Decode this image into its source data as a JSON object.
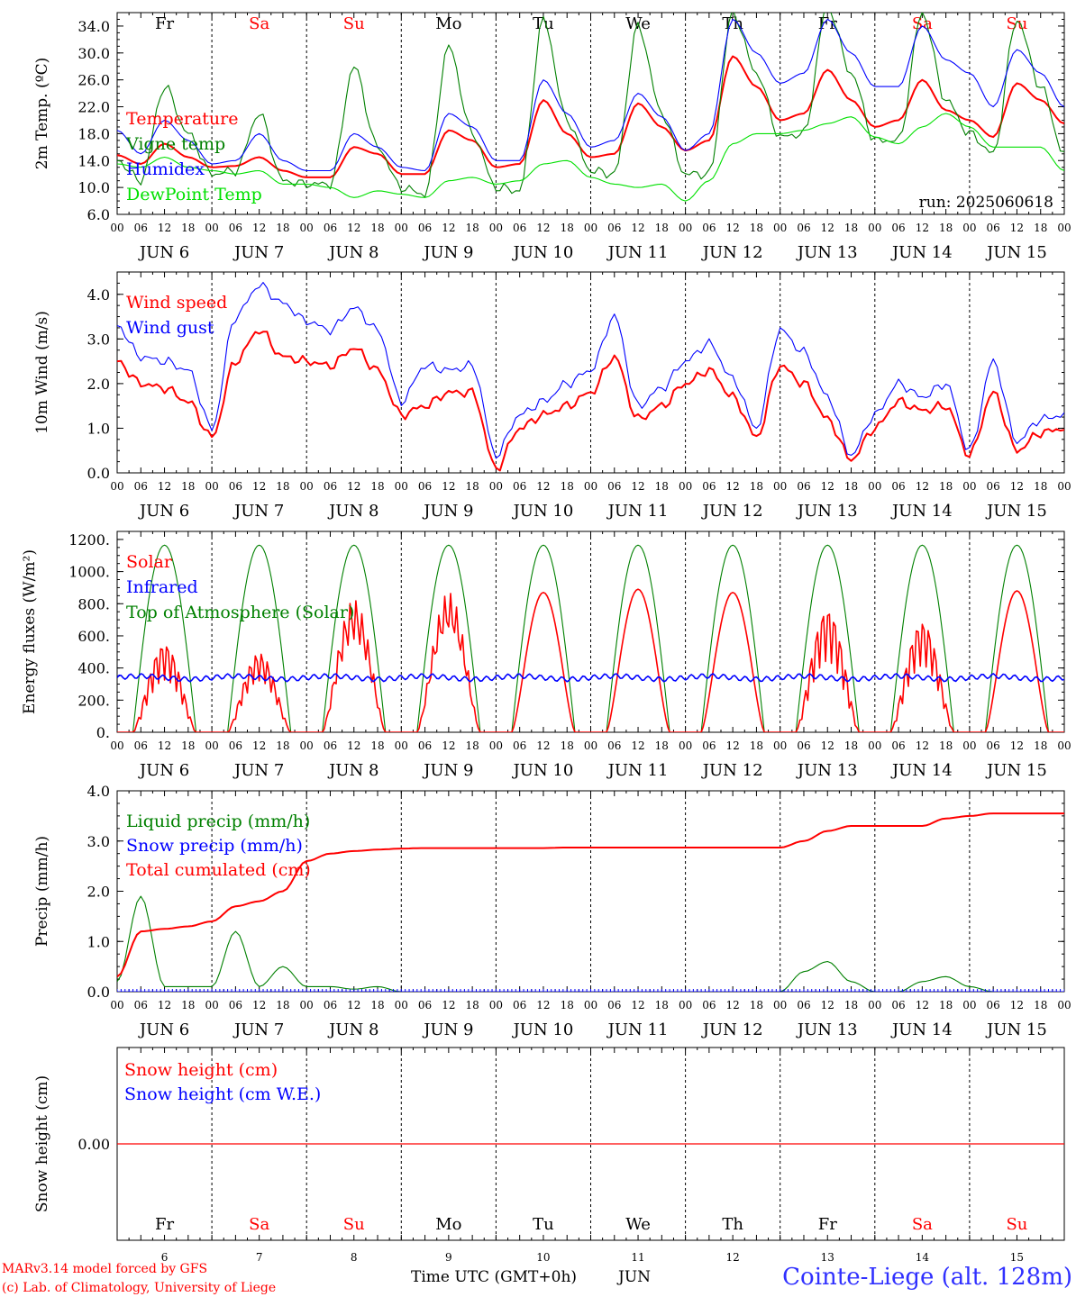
{
  "colors": {
    "red": "#ff0000",
    "green": "#008000",
    "blue": "#0000ff",
    "lime": "#00e000",
    "black": "#000000"
  },
  "days": {
    "labels": [
      "Fr",
      "Sa",
      "Su",
      "Mo",
      "Tu",
      "We",
      "Th",
      "Fr",
      "Sa",
      "Su"
    ],
    "weekend": [
      false,
      true,
      true,
      false,
      false,
      false,
      false,
      false,
      true,
      true
    ],
    "dates": [
      "JUN  6",
      "JUN  7",
      "JUN  8",
      "JUN  9",
      "JUN 10",
      "JUN 11",
      "JUN 12",
      "JUN 13",
      "JUN 14",
      "JUN 15"
    ],
    "day_numbers": [
      "6",
      "7",
      "8",
      "9",
      "10",
      "11",
      "12",
      "13",
      "14",
      "15"
    ]
  },
  "hour_ticks": [
    "00",
    "06",
    "12",
    "18"
  ],
  "final_hour": "00",
  "footer": {
    "model": "MARv3.14 model forced by GFS",
    "copyright": "(c) Lab. of Climatology, University of Liege",
    "xlabel": "Time UTC (GMT+0h)",
    "month": "JUN",
    "station": "Cointe-Liege (alt. 128m)"
  },
  "chart_data": [
    {
      "type": "line",
      "ylabel": "2m Temp. (ºC)",
      "ylim": [
        6,
        36
      ],
      "yticks": [
        "6.0",
        "10.0",
        "14.0",
        "18.0",
        "22.0",
        "26.0",
        "30.0",
        "34.0"
      ],
      "ytick_values": [
        6,
        10,
        14,
        18,
        22,
        26,
        30,
        34
      ],
      "annotation": "run: 2025060618",
      "x_hours": [
        0,
        6,
        12,
        18,
        24,
        30,
        36,
        42,
        48,
        54,
        60,
        66,
        72,
        78,
        84,
        90,
        96,
        102,
        108,
        114,
        120,
        126,
        132,
        138,
        144,
        150,
        156,
        162,
        168,
        174,
        180,
        186,
        192,
        198,
        204,
        210,
        216,
        222,
        228,
        234,
        240
      ],
      "series": [
        {
          "name": "Temperature",
          "color": "#ff0000",
          "values": [
            14.8,
            13.5,
            16.5,
            14.5,
            13,
            13.2,
            14.5,
            12.5,
            11.5,
            11.5,
            16,
            15,
            12,
            12,
            18.5,
            17,
            13,
            13.5,
            23,
            18,
            14.5,
            15,
            22.5,
            19,
            15.5,
            17,
            29.5,
            25,
            20,
            21,
            27.5,
            23,
            19,
            20,
            26,
            21.5,
            20,
            17.5,
            25.5,
            23,
            19.5
          ]
        },
        {
          "name": "Vigne temp",
          "color": "#008000",
          "values": [
            14,
            11,
            25,
            18,
            12,
            12.5,
            21,
            11,
            10.5,
            10.5,
            28,
            16,
            10,
            9,
            31,
            18,
            10,
            9.5,
            35,
            20,
            12.5,
            12,
            34,
            21,
            12,
            12,
            36,
            27,
            17.5,
            18,
            37,
            27,
            17,
            17,
            36,
            23,
            18,
            15,
            35,
            25,
            15
          ]
        },
        {
          "name": "Humidex",
          "color": "#0000ff",
          "values": [
            18.5,
            15,
            20,
            17,
            13.5,
            14,
            18,
            14,
            12.5,
            12.5,
            18,
            16,
            13,
            12.5,
            21,
            19,
            14,
            14,
            26,
            21,
            16,
            17,
            24,
            20.5,
            15.5,
            18,
            35,
            30,
            25.5,
            27,
            35,
            30,
            25,
            25,
            34,
            29,
            27,
            22,
            30.5,
            27,
            22
          ]
        },
        {
          "name": "DewPoint Temp",
          "color": "#00e000",
          "values": [
            13.5,
            13,
            14.5,
            13,
            12.5,
            12,
            12.5,
            10.5,
            10.5,
            10,
            8.5,
            9.5,
            9,
            8.5,
            11,
            11.5,
            10.5,
            11,
            13.5,
            14,
            11.5,
            10.5,
            10,
            10.5,
            8,
            11,
            16.5,
            18,
            18,
            18.5,
            19.5,
            20.5,
            17.5,
            16.5,
            19,
            21,
            19,
            16,
            16,
            16,
            12.5
          ]
        }
      ]
    },
    {
      "type": "line",
      "ylabel": "10m Wind (m/s)",
      "ylim": [
        0,
        4.5
      ],
      "yticks": [
        "0.0",
        "1.0",
        "2.0",
        "3.0",
        "4.0"
      ],
      "ytick_values": [
        0,
        1,
        2,
        3,
        4
      ],
      "x_hours": [
        0,
        6,
        12,
        18,
        24,
        30,
        36,
        42,
        48,
        54,
        60,
        66,
        72,
        78,
        84,
        90,
        96,
        102,
        108,
        114,
        120,
        126,
        132,
        138,
        144,
        150,
        156,
        162,
        168,
        174,
        180,
        186,
        192,
        198,
        204,
        210,
        216,
        222,
        228,
        234,
        240
      ],
      "series": [
        {
          "name": "Wind speed",
          "color": "#ff0000",
          "values": [
            2.5,
            2.0,
            1.9,
            1.6,
            0.8,
            2.5,
            3.2,
            2.6,
            2.5,
            2.4,
            2.8,
            2.3,
            1.3,
            1.5,
            1.8,
            1.8,
            0.1,
            1.0,
            1.3,
            1.5,
            1.8,
            2.6,
            1.2,
            1.5,
            2.0,
            2.3,
            1.7,
            0.8,
            2.4,
            2.0,
            1.2,
            0.3,
            1.0,
            1.6,
            1.4,
            1.5,
            0.4,
            1.8,
            0.5,
            0.9,
            1.0
          ]
        },
        {
          "name": "Wind gust",
          "color": "#0000ff",
          "values": [
            3.3,
            2.6,
            2.5,
            2.3,
            1.0,
            3.5,
            4.2,
            3.8,
            3.4,
            3.2,
            3.7,
            3.2,
            1.6,
            2.4,
            2.3,
            2.4,
            0.4,
            1.3,
            1.6,
            2.0,
            2.3,
            3.5,
            1.5,
            1.9,
            2.5,
            2.9,
            2.1,
            1.0,
            3.2,
            2.7,
            1.7,
            0.4,
            1.3,
            2.0,
            1.7,
            2.0,
            0.5,
            2.5,
            0.7,
            1.2,
            1.3
          ]
        }
      ]
    },
    {
      "type": "line",
      "ylabel": "Energy fluxes (W/m²)",
      "ylim": [
        0,
        1250
      ],
      "yticks": [
        "0.",
        "200.",
        "400.",
        "600.",
        "800.",
        "1000.",
        "1200."
      ],
      "ytick_values": [
        0,
        200,
        400,
        600,
        800,
        1000,
        1200
      ],
      "toa_peak": 1165,
      "solar_day_peaks": [
        560,
        500,
        830,
        870,
        870,
        890,
        870,
        780,
        700,
        880
      ],
      "infrared_mean": 340,
      "series": [
        {
          "name": "Solar",
          "color": "#ff0000"
        },
        {
          "name": "Infrared",
          "color": "#0000ff"
        },
        {
          "name": "Top of Atmosphere (Solar)",
          "color": "#008000"
        }
      ]
    },
    {
      "type": "line",
      "ylabel": "Precip (mm/h)",
      "ylim": [
        0,
        4
      ],
      "yticks": [
        "0.0",
        "1.0",
        "2.0",
        "3.0",
        "4.0"
      ],
      "ytick_values": [
        0,
        1,
        2,
        3,
        4
      ],
      "x_hours": [
        0,
        6,
        12,
        18,
        24,
        30,
        36,
        42,
        48,
        54,
        60,
        66,
        72,
        78,
        84,
        90,
        96,
        102,
        108,
        114,
        120,
        126,
        132,
        138,
        144,
        150,
        156,
        162,
        168,
        174,
        180,
        186,
        192,
        198,
        204,
        210,
        216,
        222,
        228,
        234,
        240
      ],
      "series": [
        {
          "name": "Liquid precip (mm/h)",
          "color": "#008000",
          "values": [
            0.2,
            1.9,
            0.1,
            0.1,
            0.1,
            1.2,
            0.1,
            0.5,
            0.1,
            0.1,
            0.05,
            0.1,
            0.0,
            0.0,
            0.0,
            0.0,
            0.0,
            0.0,
            0.0,
            0.0,
            0.0,
            0.0,
            0.0,
            0.0,
            0.0,
            0.0,
            0.0,
            0.0,
            0.0,
            0.4,
            0.6,
            0.2,
            0.0,
            0.0,
            0.2,
            0.3,
            0.1,
            0.0,
            0.0,
            0.0,
            0.0
          ]
        },
        {
          "name": "Snow precip (mm/h)",
          "color": "#0000ff",
          "values": [
            0,
            0,
            0,
            0,
            0,
            0,
            0,
            0,
            0,
            0,
            0,
            0,
            0,
            0,
            0,
            0,
            0,
            0,
            0,
            0,
            0,
            0,
            0,
            0,
            0,
            0,
            0,
            0,
            0,
            0,
            0,
            0,
            0,
            0,
            0,
            0,
            0,
            0,
            0,
            0,
            0
          ]
        },
        {
          "name": "Total cumulated (cm)",
          "color": "#ff0000",
          "values": [
            0.3,
            1.2,
            1.25,
            1.3,
            1.4,
            1.7,
            1.8,
            2.0,
            2.6,
            2.75,
            2.8,
            2.83,
            2.85,
            2.86,
            2.86,
            2.86,
            2.86,
            2.86,
            2.86,
            2.87,
            2.87,
            2.87,
            2.87,
            2.87,
            2.87,
            2.87,
            2.87,
            2.87,
            2.87,
            3.0,
            3.2,
            3.3,
            3.3,
            3.3,
            3.3,
            3.45,
            3.5,
            3.55,
            3.55,
            3.55,
            3.55
          ]
        }
      ]
    },
    {
      "type": "line",
      "ylabel": "Snow height (cm)",
      "ylim": [
        -1,
        1
      ],
      "yticks": [
        "0.00"
      ],
      "ytick_values": [
        0
      ],
      "series": [
        {
          "name": "Snow height (cm)",
          "color": "#ff0000",
          "values": [
            0,
            0
          ]
        },
        {
          "name": "Snow height (cm W.E.)",
          "color": "#0000ff",
          "values": [
            0,
            0
          ]
        }
      ]
    }
  ]
}
